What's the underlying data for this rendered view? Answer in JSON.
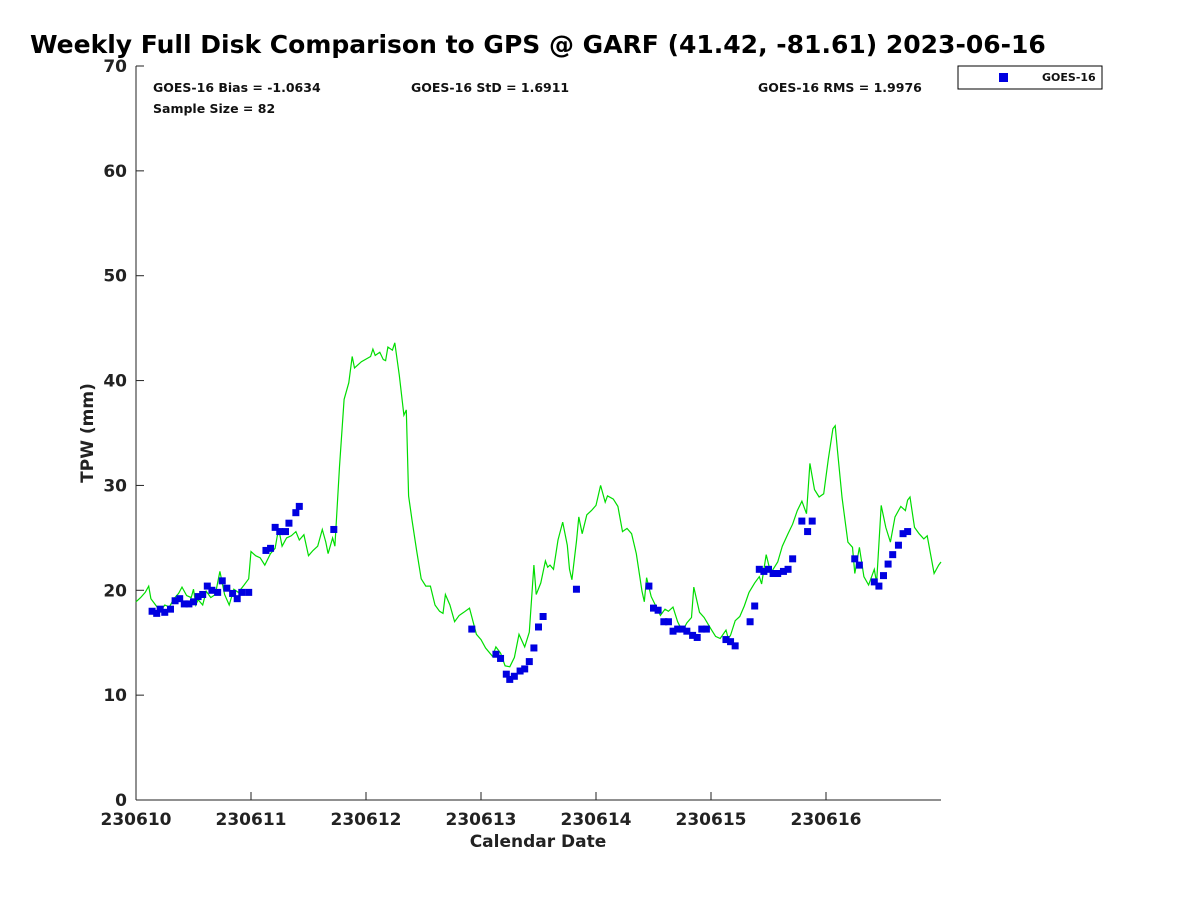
{
  "chart_data": {
    "type": "scatter",
    "title": "Weekly Full Disk Comparison to GPS @ GARF (41.42, -81.61) 2023-06-16",
    "xlabel": "Calendar Date",
    "ylabel": "TPW (mm)",
    "xlim": [
      0,
      7.0
    ],
    "ylim": [
      0,
      70
    ],
    "x_unit": "days since 230610 00Z",
    "x_ticks": [
      {
        "value": 0,
        "label": "230610"
      },
      {
        "value": 1,
        "label": "230611"
      },
      {
        "value": 2,
        "label": "230612"
      },
      {
        "value": 3,
        "label": "230613"
      },
      {
        "value": 4,
        "label": "230614"
      },
      {
        "value": 5,
        "label": "230615"
      },
      {
        "value": 6,
        "label": "230616"
      }
    ],
    "y_ticks": [
      0,
      10,
      20,
      30,
      40,
      50,
      60,
      70
    ],
    "grid": false,
    "legend_position": "outside-top-right",
    "stats": {
      "bias": "GOES-16 Bias = -1.0634",
      "std": "GOES-16 StD = 1.6911",
      "rms": "GOES-16 RMS = 1.9976",
      "sample": "Sample Size = 82"
    },
    "series": [
      {
        "name": "GOES-16",
        "kind": "markers",
        "marker": "square",
        "color": "#0000e0",
        "points": [
          [
            0.14,
            18.0
          ],
          [
            0.18,
            17.8
          ],
          [
            0.21,
            18.2
          ],
          [
            0.25,
            17.9
          ],
          [
            0.3,
            18.2
          ],
          [
            0.34,
            19.0
          ],
          [
            0.38,
            19.2
          ],
          [
            0.42,
            18.7
          ],
          [
            0.46,
            18.7
          ],
          [
            0.5,
            18.9
          ],
          [
            0.54,
            19.4
          ],
          [
            0.58,
            19.6
          ],
          [
            0.62,
            20.4
          ],
          [
            0.66,
            20.0
          ],
          [
            0.71,
            19.8
          ],
          [
            0.75,
            20.9
          ],
          [
            0.79,
            20.2
          ],
          [
            0.84,
            19.7
          ],
          [
            0.88,
            19.2
          ],
          [
            0.92,
            19.8
          ],
          [
            0.98,
            19.8
          ],
          [
            1.13,
            23.8
          ],
          [
            1.17,
            24.0
          ],
          [
            1.21,
            26.0
          ],
          [
            1.25,
            25.6
          ],
          [
            1.3,
            25.6
          ],
          [
            1.33,
            26.4
          ],
          [
            1.39,
            27.4
          ],
          [
            1.42,
            28.0
          ],
          [
            1.72,
            25.8
          ],
          [
            2.92,
            16.3
          ],
          [
            3.13,
            13.9
          ],
          [
            3.17,
            13.5
          ],
          [
            3.22,
            12.0
          ],
          [
            3.25,
            11.5
          ],
          [
            3.29,
            11.8
          ],
          [
            3.34,
            12.3
          ],
          [
            3.38,
            12.5
          ],
          [
            3.42,
            13.2
          ],
          [
            3.46,
            14.5
          ],
          [
            3.5,
            16.5
          ],
          [
            3.54,
            17.5
          ],
          [
            3.83,
            20.1
          ],
          [
            4.46,
            20.4
          ],
          [
            4.5,
            18.3
          ],
          [
            4.54,
            18.1
          ],
          [
            4.59,
            17.0
          ],
          [
            4.63,
            17.0
          ],
          [
            4.67,
            16.1
          ],
          [
            4.71,
            16.3
          ],
          [
            4.75,
            16.3
          ],
          [
            4.79,
            16.1
          ],
          [
            4.84,
            15.7
          ],
          [
            4.88,
            15.5
          ],
          [
            4.92,
            16.3
          ],
          [
            4.96,
            16.3
          ],
          [
            5.13,
            15.3
          ],
          [
            5.17,
            15.1
          ],
          [
            5.21,
            14.7
          ],
          [
            5.34,
            17.0
          ],
          [
            5.38,
            18.5
          ],
          [
            5.42,
            22.0
          ],
          [
            5.46,
            21.8
          ],
          [
            5.5,
            22.0
          ],
          [
            5.54,
            21.6
          ],
          [
            5.58,
            21.6
          ],
          [
            5.63,
            21.8
          ],
          [
            5.67,
            22.0
          ],
          [
            5.71,
            23.0
          ],
          [
            5.79,
            26.6
          ],
          [
            5.84,
            25.6
          ],
          [
            5.88,
            26.6
          ],
          [
            6.25,
            23.0
          ],
          [
            6.29,
            22.4
          ],
          [
            6.42,
            20.8
          ],
          [
            6.46,
            20.4
          ],
          [
            6.5,
            21.4
          ],
          [
            6.54,
            22.5
          ],
          [
            6.58,
            23.4
          ],
          [
            6.63,
            24.3
          ],
          [
            6.67,
            25.4
          ],
          [
            6.71,
            25.6
          ]
        ]
      },
      {
        "name": "",
        "kind": "line",
        "color": "#00dd00",
        "points": [
          [
            0.0,
            18.9
          ],
          [
            0.04,
            19.3
          ],
          [
            0.08,
            19.8
          ],
          [
            0.11,
            20.4
          ],
          [
            0.13,
            19.2
          ],
          [
            0.17,
            18.6
          ],
          [
            0.21,
            18.0
          ],
          [
            0.25,
            18.6
          ],
          [
            0.29,
            18.4
          ],
          [
            0.33,
            19.2
          ],
          [
            0.37,
            19.7
          ],
          [
            0.4,
            20.3
          ],
          [
            0.44,
            19.5
          ],
          [
            0.48,
            19.3
          ],
          [
            0.5,
            20.1
          ],
          [
            0.52,
            18.6
          ],
          [
            0.54,
            19.1
          ],
          [
            0.58,
            18.6
          ],
          [
            0.61,
            19.9
          ],
          [
            0.65,
            19.3
          ],
          [
            0.69,
            19.6
          ],
          [
            0.73,
            21.8
          ],
          [
            0.77,
            19.6
          ],
          [
            0.81,
            18.6
          ],
          [
            0.85,
            20.1
          ],
          [
            0.89,
            19.8
          ],
          [
            0.94,
            20.5
          ],
          [
            0.98,
            21.1
          ],
          [
            1.0,
            23.7
          ],
          [
            1.04,
            23.3
          ],
          [
            1.08,
            23.1
          ],
          [
            1.12,
            22.4
          ],
          [
            1.17,
            23.5
          ],
          [
            1.21,
            24.0
          ],
          [
            1.24,
            25.9
          ],
          [
            1.27,
            24.2
          ],
          [
            1.31,
            25.0
          ],
          [
            1.35,
            25.2
          ],
          [
            1.39,
            25.6
          ],
          [
            1.42,
            24.8
          ],
          [
            1.46,
            25.3
          ],
          [
            1.5,
            23.3
          ],
          [
            1.54,
            23.8
          ],
          [
            1.58,
            24.2
          ],
          [
            1.62,
            25.8
          ],
          [
            1.65,
            24.6
          ],
          [
            1.67,
            23.5
          ],
          [
            1.71,
            25.0
          ],
          [
            1.73,
            24.2
          ],
          [
            1.77,
            31.8
          ],
          [
            1.81,
            38.2
          ],
          [
            1.85,
            39.8
          ],
          [
            1.88,
            42.3
          ],
          [
            1.9,
            41.2
          ],
          [
            1.96,
            41.8
          ],
          [
            2.04,
            42.3
          ],
          [
            2.06,
            43.0
          ],
          [
            2.08,
            42.4
          ],
          [
            2.12,
            42.7
          ],
          [
            2.15,
            42.0
          ],
          [
            2.17,
            41.9
          ],
          [
            2.19,
            43.2
          ],
          [
            2.23,
            42.9
          ],
          [
            2.25,
            43.6
          ],
          [
            2.29,
            40.5
          ],
          [
            2.33,
            36.7
          ],
          [
            2.35,
            37.2
          ],
          [
            2.37,
            29.0
          ],
          [
            2.4,
            26.7
          ],
          [
            2.44,
            23.8
          ],
          [
            2.48,
            21.1
          ],
          [
            2.52,
            20.4
          ],
          [
            2.56,
            20.4
          ],
          [
            2.6,
            18.6
          ],
          [
            2.64,
            18.0
          ],
          [
            2.67,
            17.8
          ],
          [
            2.69,
            19.6
          ],
          [
            2.73,
            18.6
          ],
          [
            2.77,
            17.0
          ],
          [
            2.81,
            17.6
          ],
          [
            2.85,
            17.9
          ],
          [
            2.9,
            18.3
          ],
          [
            2.96,
            15.8
          ],
          [
            3.0,
            15.3
          ],
          [
            3.04,
            14.5
          ],
          [
            3.1,
            13.7
          ],
          [
            3.13,
            14.6
          ],
          [
            3.17,
            14.0
          ],
          [
            3.21,
            12.8
          ],
          [
            3.25,
            12.7
          ],
          [
            3.29,
            13.6
          ],
          [
            3.33,
            15.8
          ],
          [
            3.38,
            14.6
          ],
          [
            3.42,
            16.0
          ],
          [
            3.46,
            22.4
          ],
          [
            3.48,
            19.6
          ],
          [
            3.52,
            20.7
          ],
          [
            3.56,
            22.8
          ],
          [
            3.58,
            22.2
          ],
          [
            3.6,
            22.4
          ],
          [
            3.63,
            22.0
          ],
          [
            3.67,
            24.8
          ],
          [
            3.71,
            26.5
          ],
          [
            3.75,
            24.3
          ],
          [
            3.77,
            22.0
          ],
          [
            3.79,
            21.0
          ],
          [
            3.83,
            24.7
          ],
          [
            3.85,
            27.0
          ],
          [
            3.88,
            25.4
          ],
          [
            3.92,
            27.2
          ],
          [
            3.96,
            27.6
          ],
          [
            4.0,
            28.1
          ],
          [
            4.04,
            30.0
          ],
          [
            4.08,
            28.4
          ],
          [
            4.1,
            29.0
          ],
          [
            4.15,
            28.7
          ],
          [
            4.19,
            28.0
          ],
          [
            4.23,
            25.6
          ],
          [
            4.27,
            25.9
          ],
          [
            4.31,
            25.4
          ],
          [
            4.35,
            23.5
          ],
          [
            4.4,
            19.9
          ],
          [
            4.42,
            18.9
          ],
          [
            4.44,
            21.2
          ],
          [
            4.48,
            19.4
          ],
          [
            4.52,
            18.5
          ],
          [
            4.56,
            17.6
          ],
          [
            4.6,
            18.2
          ],
          [
            4.63,
            18.0
          ],
          [
            4.67,
            18.4
          ],
          [
            4.71,
            17.0
          ],
          [
            4.75,
            16.1
          ],
          [
            4.79,
            16.9
          ],
          [
            4.83,
            17.4
          ],
          [
            4.85,
            20.3
          ],
          [
            4.9,
            17.9
          ],
          [
            4.94,
            17.4
          ],
          [
            5.0,
            16.3
          ],
          [
            5.04,
            15.6
          ],
          [
            5.08,
            15.4
          ],
          [
            5.13,
            16.2
          ],
          [
            5.15,
            15.4
          ],
          [
            5.17,
            15.7
          ],
          [
            5.21,
            17.1
          ],
          [
            5.25,
            17.5
          ],
          [
            5.29,
            18.5
          ],
          [
            5.33,
            19.8
          ],
          [
            5.38,
            20.7
          ],
          [
            5.42,
            21.3
          ],
          [
            5.44,
            20.6
          ],
          [
            5.48,
            23.4
          ],
          [
            5.52,
            21.6
          ],
          [
            5.54,
            22.0
          ],
          [
            5.58,
            22.7
          ],
          [
            5.62,
            24.2
          ],
          [
            5.67,
            25.4
          ],
          [
            5.71,
            26.3
          ],
          [
            5.75,
            27.6
          ],
          [
            5.79,
            28.5
          ],
          [
            5.83,
            27.3
          ],
          [
            5.86,
            32.1
          ],
          [
            5.9,
            29.6
          ],
          [
            5.94,
            28.9
          ],
          [
            5.98,
            29.2
          ],
          [
            6.02,
            32.5
          ],
          [
            6.06,
            35.4
          ],
          [
            6.08,
            35.7
          ],
          [
            6.1,
            33.3
          ],
          [
            6.14,
            28.8
          ],
          [
            6.19,
            24.6
          ],
          [
            6.23,
            24.1
          ],
          [
            6.25,
            21.6
          ],
          [
            6.29,
            24.1
          ],
          [
            6.33,
            21.3
          ],
          [
            6.37,
            20.5
          ],
          [
            6.42,
            22.0
          ],
          [
            6.44,
            20.7
          ],
          [
            6.48,
            28.1
          ],
          [
            6.52,
            26.0
          ],
          [
            6.56,
            24.6
          ],
          [
            6.6,
            27.0
          ],
          [
            6.65,
            28.0
          ],
          [
            6.69,
            27.6
          ],
          [
            6.71,
            28.6
          ],
          [
            6.73,
            28.9
          ],
          [
            6.77,
            26.0
          ],
          [
            6.81,
            25.4
          ],
          [
            6.85,
            24.9
          ],
          [
            6.88,
            25.2
          ],
          [
            6.92,
            22.8
          ],
          [
            6.94,
            21.6
          ],
          [
            6.98,
            22.4
          ],
          [
            7.0,
            22.7
          ]
        ]
      }
    ]
  },
  "legend": {
    "label": "GOES-16"
  }
}
